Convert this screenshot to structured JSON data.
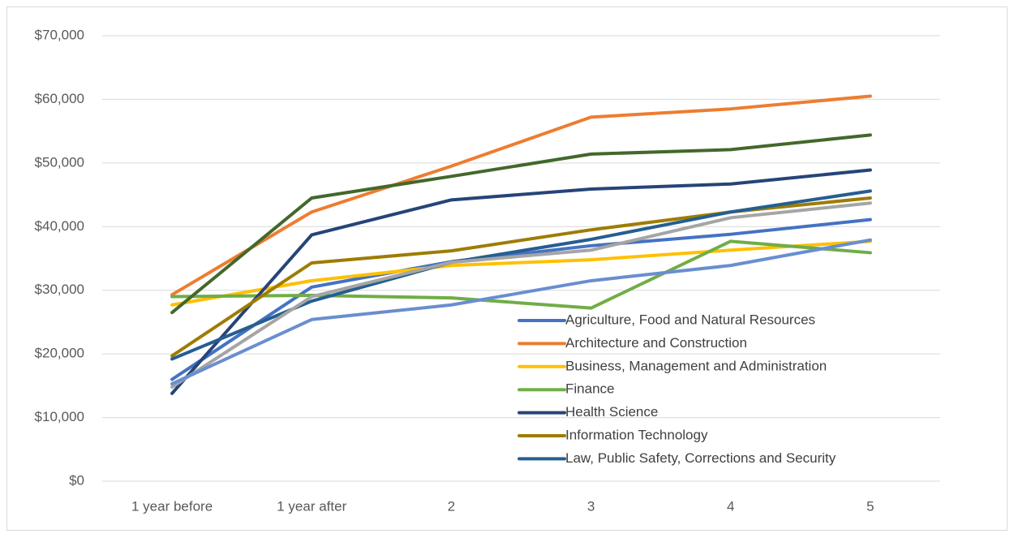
{
  "chart_data": {
    "type": "line",
    "categories": [
      "1 year before",
      "1 year after",
      "2",
      "3",
      "4",
      "5"
    ],
    "ylim": [
      0,
      70000
    ],
    "yticks": [
      {
        "value": 0,
        "label": "$0"
      },
      {
        "value": 10000,
        "label": "$10,000"
      },
      {
        "value": 20000,
        "label": "$20,000"
      },
      {
        "value": 30000,
        "label": "$30,000"
      },
      {
        "value": 40000,
        "label": "$40,000"
      },
      {
        "value": 50000,
        "label": "$50,000"
      },
      {
        "value": 60000,
        "label": "$60,000"
      },
      {
        "value": 70000,
        "label": "$70,000"
      }
    ],
    "grid": true,
    "legend": "inside-lower-right",
    "series": [
      {
        "name": "Agriculture, Food and Natural Resources",
        "color": "#4472c4",
        "values": [
          16000,
          30500,
          34500,
          37000,
          38800,
          41100
        ]
      },
      {
        "name": "Architecture and Construction",
        "color": "#ed7d31",
        "values": [
          29300,
          42300,
          49500,
          57200,
          58500,
          60500
        ]
      },
      {
        "name": "Business, Management and Administration",
        "color": "#ffc000",
        "values": [
          27700,
          31500,
          33900,
          34800,
          36300,
          37700
        ]
      },
      {
        "name": "Finance",
        "color": "#70ad47",
        "values": [
          29000,
          29200,
          28800,
          27200,
          37700,
          35900
        ]
      },
      {
        "name": "Health Science",
        "color": "#264478",
        "values": [
          13800,
          38700,
          44200,
          45900,
          46700,
          48900
        ]
      },
      {
        "name": "Information Technology",
        "color": "#9e7c00",
        "values": [
          19700,
          34300,
          36200,
          39500,
          42300,
          44500
        ]
      },
      {
        "name": "Law, Public Safety, Corrections and Security",
        "color": "#255e91",
        "values": [
          19200,
          28300,
          34400,
          38000,
          42300,
          45600
        ]
      },
      {
        "color": "#43682b",
        "values": [
          26500,
          44500,
          47900,
          51400,
          52100,
          54400
        ]
      },
      {
        "color": "#a5a5a5",
        "values": [
          14800,
          29000,
          34400,
          36300,
          41400,
          43700
        ]
      },
      {
        "color": "#698ed0",
        "values": [
          15300,
          25400,
          27700,
          31500,
          33900,
          37900
        ]
      }
    ]
  }
}
